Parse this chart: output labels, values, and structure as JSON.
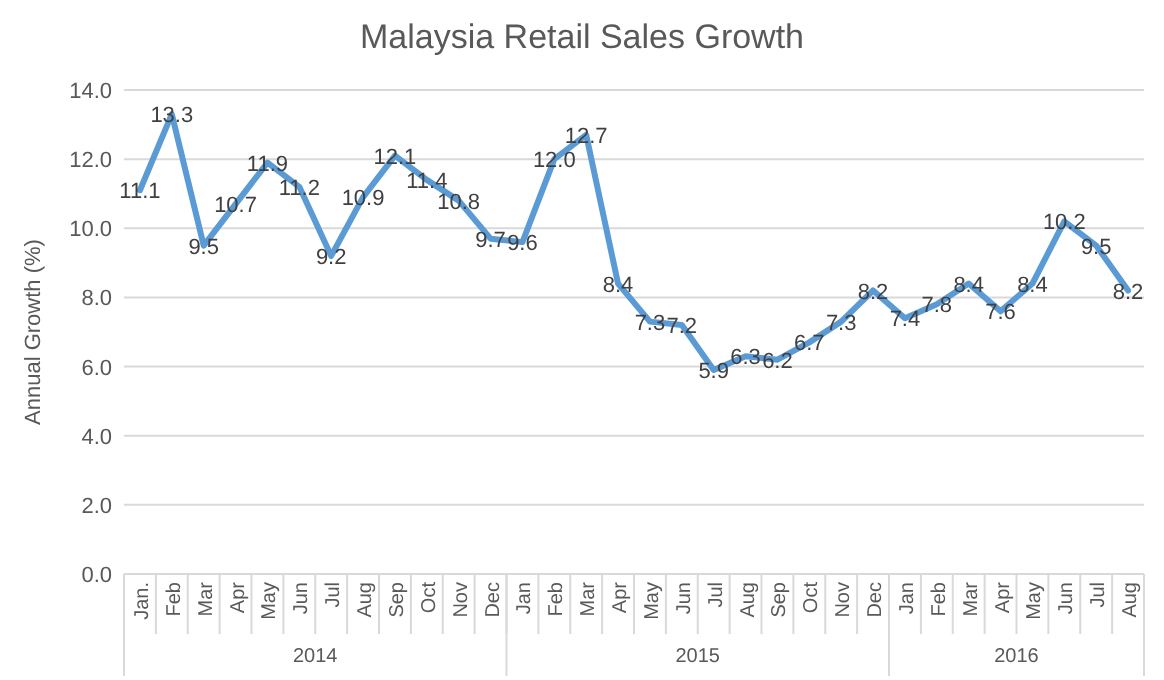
{
  "chart_data": {
    "type": "line",
    "title": "Malaysia Retail Sales Growth",
    "ylabel": "Annual Growth (%)",
    "categories": [
      "Jan.",
      "Feb",
      "Mar",
      "Apr",
      "May",
      "Jun",
      "Jul",
      "Aug",
      "Sep",
      "Oct",
      "Nov",
      "Dec",
      "Jan",
      "Feb",
      "Mar",
      "Apr",
      "May",
      "Jun",
      "Jul",
      "Aug",
      "Sep",
      "Oct",
      "Nov",
      "Dec",
      "Jan",
      "Feb",
      "Mar",
      "Apr",
      "May",
      "Jun",
      "Jul",
      "Aug"
    ],
    "series": [
      {
        "color": "#5b9bd5",
        "values": [
          11.1,
          13.3,
          9.5,
          10.7,
          11.9,
          11.2,
          9.2,
          10.9,
          12.1,
          11.4,
          10.8,
          9.7,
          9.6,
          12.0,
          12.7,
          8.4,
          7.3,
          7.2,
          5.9,
          6.3,
          6.2,
          6.7,
          7.3,
          8.2,
          7.4,
          7.8,
          8.4,
          7.6,
          8.4,
          10.2,
          9.5,
          8.2
        ],
        "value_labels": [
          "11.1",
          "13.3",
          "9.5",
          "10.7",
          "11.9",
          "11.2",
          "9.2",
          "10.9",
          "12.1",
          "11.4",
          "10.8",
          "9.7",
          "9.6",
          "12.0",
          "12.7",
          "8.4",
          "7.3",
          "7.2",
          "5.9",
          "6.3",
          "6.2",
          "6.7",
          "7.3",
          "8.2",
          "7.4",
          "7.8",
          "8.4",
          "7.6",
          "8.4",
          "10.2",
          "9.5",
          "8.2"
        ]
      }
    ],
    "annotations": [
      "2014",
      "2015",
      "2016"
    ],
    "ylim": [
      0,
      14
    ],
    "yticks": [
      {
        "value": 0,
        "label": "0.0"
      },
      {
        "value": 2,
        "label": "2.0"
      },
      {
        "value": 4,
        "label": "4.0"
      },
      {
        "value": 6,
        "label": "6.0"
      },
      {
        "value": 8,
        "label": "8.0"
      },
      {
        "value": 10,
        "label": "10.0"
      },
      {
        "value": 12,
        "label": "12.0"
      },
      {
        "value": 14,
        "label": "14.0"
      }
    ],
    "grid": "y",
    "marker": "none",
    "line_style": "solid"
  }
}
